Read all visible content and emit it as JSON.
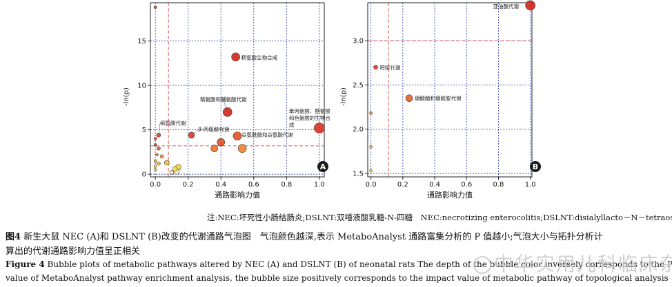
{
  "colors": {
    "grid_blue": "#3b4fb5",
    "ref_red": "#e05b4f",
    "frame": "#222222"
  },
  "chart_data": [
    {
      "type": "scatter",
      "panel_label": "A",
      "xlabel": "通路影响力值",
      "ylabel": "-ln(p)",
      "xlim": [
        -0.03,
        1.03
      ],
      "ylim": [
        -0.3,
        19.3
      ],
      "xticks": [
        0.0,
        0.2,
        0.4,
        0.6,
        0.8,
        1.0
      ],
      "xtick_labels": [
        "0.0",
        "0.2",
        "0.4",
        "0.6",
        "0.8",
        "1.0"
      ],
      "yticks": [
        0,
        5,
        10,
        15
      ],
      "ytick_labels": [
        "0",
        "5",
        "10",
        "15"
      ],
      "ref_x": 0.08,
      "ref_y": 3.2,
      "points": [
        {
          "x": 0.0,
          "y": 18.8,
          "size": 2,
          "color": "#d9453a",
          "label": ""
        },
        {
          "x": 0.49,
          "y": 13.2,
          "size": 6,
          "color": "#d42f24",
          "label": "精氨酸生物合成"
        },
        {
          "x": 0.44,
          "y": 7.0,
          "size": 6.5,
          "color": "#d42f24",
          "label": "精氨酸和脯氨酸代谢"
        },
        {
          "x": 1.0,
          "y": 5.2,
          "size": 7.5,
          "color": "#df3b2a",
          "label": "苯丙氨酸、酪氨酸和色氨酸的生物合成"
        },
        {
          "x": 0.22,
          "y": 4.4,
          "size": 4.5,
          "color": "#e0452d",
          "label": "β-丙氨酸代谢"
        },
        {
          "x": 0.5,
          "y": 4.3,
          "size": 6,
          "color": "#e55a2e",
          "label": "谷氨酰胺和谷氨酸代谢"
        },
        {
          "x": 0.4,
          "y": 3.6,
          "size": 5.5,
          "color": "#e4552d",
          "label": ""
        },
        {
          "x": 0.36,
          "y": 2.9,
          "size": 5,
          "color": "#ee7a30",
          "label": ""
        },
        {
          "x": 0.53,
          "y": 2.9,
          "size": 6,
          "color": "#f08a34",
          "label": ""
        },
        {
          "x": 0.02,
          "y": 4.4,
          "size": 3,
          "color": "#e24a34",
          "label": "组氨酸代谢"
        },
        {
          "x": 0.0,
          "y": 4.0,
          "size": 2,
          "color": "#e24a34",
          "label": ""
        },
        {
          "x": 0.0,
          "y": 3.3,
          "size": 2,
          "color": "#e24a34",
          "label": ""
        },
        {
          "x": 0.02,
          "y": 2.9,
          "size": 2.5,
          "color": "#e8672f",
          "label": ""
        },
        {
          "x": 0.01,
          "y": 2.2,
          "size": 2,
          "color": "#ef8433",
          "label": ""
        },
        {
          "x": 0.04,
          "y": 2.0,
          "size": 2.5,
          "color": "#f09a3a",
          "label": ""
        },
        {
          "x": 0.0,
          "y": 1.5,
          "size": 2,
          "color": "#f2aa3f",
          "label": ""
        },
        {
          "x": 0.02,
          "y": 1.2,
          "size": 2.5,
          "color": "#f4bd45",
          "label": ""
        },
        {
          "x": 0.07,
          "y": 1.3,
          "size": 3.5,
          "color": "#f6c54a",
          "label": ""
        },
        {
          "x": 0.0,
          "y": 0.9,
          "size": 2,
          "color": "#f7cf4d",
          "label": ""
        },
        {
          "x": 0.0,
          "y": 0.5,
          "size": 2,
          "color": "#f8d84f",
          "label": ""
        },
        {
          "x": 0.12,
          "y": 0.6,
          "size": 3.5,
          "color": "#f9e056",
          "label": ""
        },
        {
          "x": 0.14,
          "y": 0.8,
          "size": 4,
          "color": "#f7d64c",
          "label": ""
        },
        {
          "x": 0.13,
          "y": 0.3,
          "size": 4,
          "color": "#fbf0d0",
          "label": ""
        },
        {
          "x": 0.1,
          "y": 0.2,
          "size": 3,
          "color": "#fbf0d0",
          "label": ""
        }
      ]
    },
    {
      "type": "scatter",
      "panel_label": "B",
      "xlabel": "通路影响力值",
      "ylabel": "-ln(p)",
      "xlim": [
        -0.02,
        1.01
      ],
      "ylim": [
        1.46,
        3.43
      ],
      "xticks": [
        0.0,
        0.2,
        0.4,
        0.6,
        0.8,
        1.0
      ],
      "xtick_labels": [
        "0.0",
        "0.2",
        "0.4",
        "0.6",
        "0.8",
        "1.0"
      ],
      "yticks": [
        1.5,
        2.0,
        2.5,
        3.0
      ],
      "ytick_labels": [
        "1.5",
        "2.0",
        "2.5",
        "3.0"
      ],
      "ref_x": 0.11,
      "ref_y": 3.0,
      "points": [
        {
          "x": 1.0,
          "y": 3.4,
          "size": 7,
          "color": "#d42f24",
          "label": "亚油酸代谢"
        },
        {
          "x": 0.03,
          "y": 2.7,
          "size": 3,
          "color": "#d9453a",
          "label": "嘧啶代谢"
        },
        {
          "x": 0.24,
          "y": 2.35,
          "size": 5,
          "color": "#e76a2f",
          "label": "烟酸酯和烟酰胺代谢"
        },
        {
          "x": 0.0,
          "y": 2.18,
          "size": 2,
          "color": "#ef8a35",
          "label": ""
        },
        {
          "x": 0.0,
          "y": 1.8,
          "size": 2,
          "color": "#f3b844",
          "label": ""
        },
        {
          "x": 0.0,
          "y": 1.53,
          "size": 2,
          "color": "#f6d255",
          "label": ""
        }
      ]
    }
  ],
  "caption": {
    "note": "注:NEC:坏死性小肠结肠炎;DSLNT:双唾液酸乳糖-N-四糖　NEC:necrotizing enterocolitis;DSLNT:disialyllacto－N－tetraose",
    "zh_fig": "图4",
    "zh_line1": "新生大鼠 NEC (A)和 DSLNT (B)改变的代谢通路气泡图　气泡颜色越深,表示 MetaboAnalyst 通路富集分析的 P 值越小;气泡大小与拓扑分析计",
    "zh_line2": "算出的代谢通路影响力值呈正相关",
    "en_fig": "Figure 4",
    "en_line1": "Bubble plots of metabolic pathways altered by NEC (A) and DSLNT (B) of neonatal rats  The depth of the bubble color inversely corresponds to the P",
    "en_line2": "value of MetaboAnalyst pathway enrichment analysis, the bubble size positively corresponds to the impact value of metabolic pathway of topological analysis"
  },
  "watermark": "中华实用儿科临床杂志"
}
